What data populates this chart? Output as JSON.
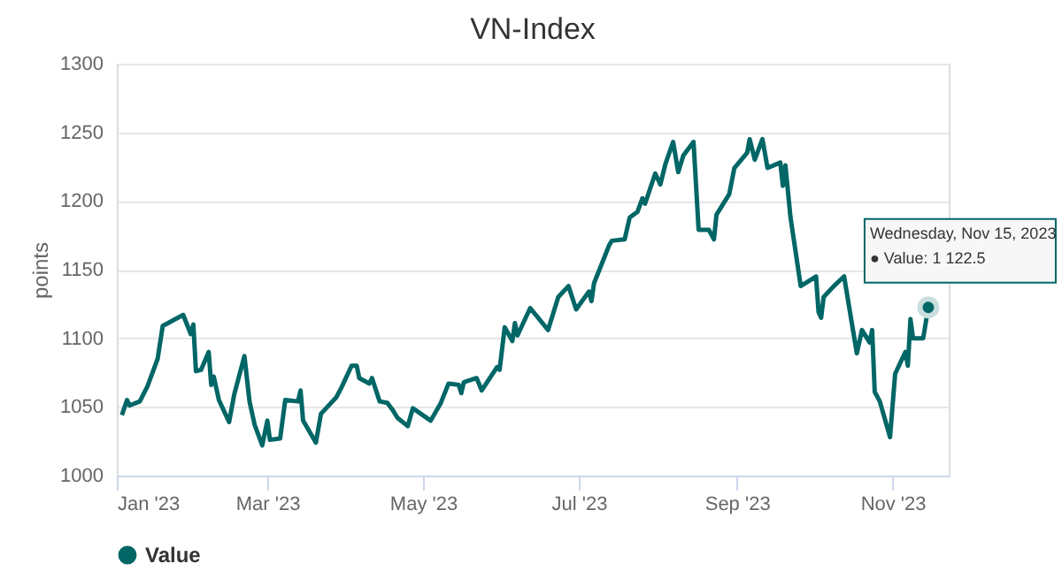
{
  "chart_data": {
    "type": "line",
    "title": "VN-Index",
    "ylabel": "points",
    "x": [
      "2023-01-03",
      "2023-01-05",
      "2023-01-06",
      "2023-01-10",
      "2023-01-13",
      "2023-01-17",
      "2023-01-19",
      "2023-01-27",
      "2023-01-30",
      "2023-01-31",
      "2023-02-01",
      "2023-02-03",
      "2023-02-06",
      "2023-02-07",
      "2023-02-08",
      "2023-02-10",
      "2023-02-14",
      "2023-02-16",
      "2023-02-20",
      "2023-02-22",
      "2023-02-24",
      "2023-02-27",
      "2023-03-01",
      "2023-03-02",
      "2023-03-06",
      "2023-03-08",
      "2023-03-13",
      "2023-03-14",
      "2023-03-15",
      "2023-03-20",
      "2023-03-22",
      "2023-03-28",
      "2023-03-30",
      "2023-04-03",
      "2023-04-05",
      "2023-04-06",
      "2023-04-10",
      "2023-04-11",
      "2023-04-14",
      "2023-04-17",
      "2023-04-19",
      "2023-04-21",
      "2023-04-25",
      "2023-04-27",
      "2023-05-04",
      "2023-05-08",
      "2023-05-11",
      "2023-05-15",
      "2023-05-16",
      "2023-05-17",
      "2023-05-22",
      "2023-05-24",
      "2023-05-30",
      "2023-05-31",
      "2023-06-02",
      "2023-06-05",
      "2023-06-06",
      "2023-06-07",
      "2023-06-12",
      "2023-06-19",
      "2023-06-23",
      "2023-06-27",
      "2023-06-30",
      "2023-07-05",
      "2023-07-06",
      "2023-07-07",
      "2023-07-13",
      "2023-07-14",
      "2023-07-19",
      "2023-07-21",
      "2023-07-24",
      "2023-07-26",
      "2023-07-27",
      "2023-07-31",
      "2023-08-02",
      "2023-08-04",
      "2023-08-07",
      "2023-08-09",
      "2023-08-11",
      "2023-08-15",
      "2023-08-17",
      "2023-08-21",
      "2023-08-23",
      "2023-08-24",
      "2023-08-29",
      "2023-08-31",
      "2023-09-05",
      "2023-09-06",
      "2023-09-08",
      "2023-09-11",
      "2023-09-13",
      "2023-09-18",
      "2023-09-19",
      "2023-09-20",
      "2023-09-22",
      "2023-09-26",
      "2023-10-02",
      "2023-10-03",
      "2023-10-04",
      "2023-10-05",
      "2023-10-09",
      "2023-10-13",
      "2023-10-18",
      "2023-10-20",
      "2023-10-23",
      "2023-10-24",
      "2023-10-25",
      "2023-10-27",
      "2023-10-31",
      "2023-11-02",
      "2023-11-06",
      "2023-11-07",
      "2023-11-08",
      "2023-11-09",
      "2023-11-13",
      "2023-11-15"
    ],
    "series": [
      {
        "name": "Value",
        "color": "#006666",
        "values": [
          1044,
          1055,
          1051,
          1054,
          1065,
          1085,
          1109,
          1117,
          1103,
          1110,
          1076,
          1077,
          1090,
          1066,
          1072,
          1055,
          1039,
          1059,
          1087,
          1054,
          1037,
          1022,
          1040,
          1026,
          1027,
          1055,
          1054,
          1062,
          1040,
          1024,
          1045,
          1057,
          1064,
          1080,
          1080,
          1071,
          1067,
          1071,
          1054,
          1053,
          1048,
          1042,
          1036,
          1049,
          1040,
          1053,
          1067,
          1066,
          1060,
          1068,
          1071,
          1062,
          1079,
          1077,
          1108,
          1098,
          1111,
          1102,
          1122,
          1106,
          1130,
          1138,
          1121,
          1134,
          1127,
          1140,
          1168,
          1171,
          1172,
          1188,
          1192,
          1202,
          1198,
          1220,
          1212,
          1227,
          1243,
          1221,
          1233,
          1243,
          1179,
          1179,
          1172,
          1190,
          1205,
          1224,
          1235,
          1245,
          1230,
          1245,
          1224,
          1228,
          1211,
          1226,
          1188,
          1138,
          1145,
          1119,
          1115,
          1130,
          1138,
          1145,
          1089,
          1106,
          1097,
          1106,
          1061,
          1054,
          1028,
          1074,
          1090,
          1080,
          1114,
          1100,
          1100,
          1122.5
        ]
      }
    ],
    "xlim": [
      "2023-01-01",
      "2023-11-23"
    ],
    "xticks": [
      {
        "value": "2023-01-01",
        "label": "Jan '23"
      },
      {
        "value": "2023-03-01",
        "label": "Mar '23"
      },
      {
        "value": "2023-05-01",
        "label": "May '23"
      },
      {
        "value": "2023-07-01",
        "label": "Jul '23"
      },
      {
        "value": "2023-09-01",
        "label": "Sep '23"
      },
      {
        "value": "2023-11-01",
        "label": "Nov '23"
      }
    ],
    "ylim": [
      1000,
      1300
    ],
    "yticks": [
      1000,
      1050,
      1100,
      1150,
      1200,
      1250,
      1300
    ],
    "grid": "y",
    "legend": "bottom",
    "annotations": [
      {
        "text": "Wednesday, Nov 15, 2023\n● Value: 1 122.5",
        "x": "2023-11-15",
        "y": 1122.5
      }
    ]
  }
}
